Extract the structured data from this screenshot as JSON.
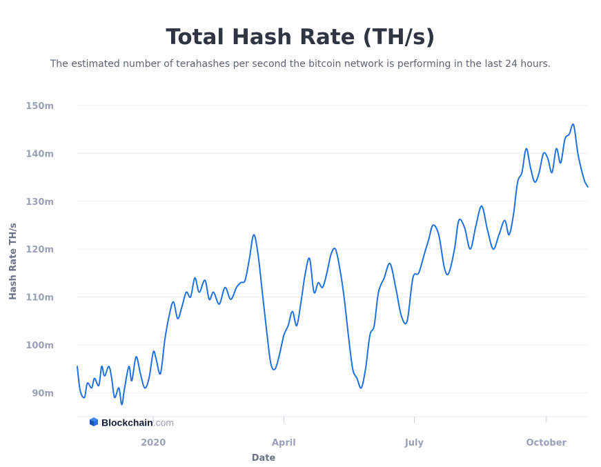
{
  "header": {
    "title": "Total Hash Rate (TH/s)",
    "subtitle": "The estimated number of terahashes per second the bitcoin network is performing in the last 24 hours."
  },
  "branding": {
    "name": "Blockchain",
    "suffix": ".com",
    "icon": "blockchain-cube-icon"
  },
  "colors": {
    "line": "#1e6fe0",
    "grid": "#eef0f5",
    "tick": "#9aa1b7",
    "brand_dark": "#121d33",
    "brand_light": "#9aa1b7"
  },
  "chart_data": {
    "type": "line",
    "title": "Total Hash Rate (TH/s)",
    "xlabel": "Date",
    "ylabel": "Hash Rate TH/s",
    "ylim": [
      85000000,
      150000000
    ],
    "y_ticks": [
      {
        "value": 90000000,
        "label": "90m"
      },
      {
        "value": 100000000,
        "label": "100m"
      },
      {
        "value": 110000000,
        "label": "110m"
      },
      {
        "value": 120000000,
        "label": "120m"
      },
      {
        "value": 130000000,
        "label": "130m"
      },
      {
        "value": 140000000,
        "label": "140m"
      },
      {
        "value": 150000000,
        "label": "150m"
      }
    ],
    "xlim": [
      "2019-11-09",
      "2020-10-30"
    ],
    "x_ticks": [
      {
        "value": "2020-01-01",
        "label": "2020"
      },
      {
        "value": "2020-04-01",
        "label": "April"
      },
      {
        "value": "2020-07-01",
        "label": "July"
      },
      {
        "value": "2020-10-01",
        "label": "October"
      }
    ],
    "grid": true,
    "series": [
      {
        "x": [
          "2019-11-09",
          "2019-11-11",
          "2019-11-14",
          "2019-11-16",
          "2019-11-19",
          "2019-11-21",
          "2019-11-24",
          "2019-11-26",
          "2019-11-28",
          "2019-12-01",
          "2019-12-03",
          "2019-12-05",
          "2019-12-08",
          "2019-12-10",
          "2019-12-12",
          "2019-12-15",
          "2019-12-17",
          "2019-12-20",
          "2019-12-23",
          "2019-12-26",
          "2019-12-29",
          "2020-01-01",
          "2020-01-03",
          "2020-01-06",
          "2020-01-09",
          "2020-01-12",
          "2020-01-15",
          "2020-01-18",
          "2020-01-21",
          "2020-01-24",
          "2020-01-27",
          "2020-01-30",
          "2020-02-02",
          "2020-02-06",
          "2020-02-09",
          "2020-02-12",
          "2020-02-16",
          "2020-02-20",
          "2020-02-24",
          "2020-02-28",
          "2020-03-02",
          "2020-03-05",
          "2020-03-08",
          "2020-03-11",
          "2020-03-14",
          "2020-03-17",
          "2020-03-20",
          "2020-03-23",
          "2020-03-26",
          "2020-03-29",
          "2020-04-01",
          "2020-04-04",
          "2020-04-07",
          "2020-04-10",
          "2020-04-13",
          "2020-04-16",
          "2020-04-19",
          "2020-04-22",
          "2020-04-25",
          "2020-04-28",
          "2020-05-01",
          "2020-05-04",
          "2020-05-07",
          "2020-05-10",
          "2020-05-13",
          "2020-05-16",
          "2020-05-19",
          "2020-05-22",
          "2020-05-25",
          "2020-05-28",
          "2020-05-31",
          "2020-06-03",
          "2020-06-06",
          "2020-06-10",
          "2020-06-14",
          "2020-06-18",
          "2020-06-22",
          "2020-06-26",
          "2020-06-30",
          "2020-07-04",
          "2020-07-08",
          "2020-07-11",
          "2020-07-14",
          "2020-07-18",
          "2020-07-22",
          "2020-07-25",
          "2020-07-29",
          "2020-08-01",
          "2020-08-05",
          "2020-08-09",
          "2020-08-13",
          "2020-08-17",
          "2020-08-21",
          "2020-08-25",
          "2020-08-29",
          "2020-09-02",
          "2020-09-05",
          "2020-09-08",
          "2020-09-11",
          "2020-09-14",
          "2020-09-17",
          "2020-09-20",
          "2020-09-23",
          "2020-09-26",
          "2020-09-29",
          "2020-10-02",
          "2020-10-05",
          "2020-10-08",
          "2020-10-11",
          "2020-10-14",
          "2020-10-17",
          "2020-10-20",
          "2020-10-23",
          "2020-10-26",
          "2020-10-28",
          "2020-10-30"
        ],
        "values": [
          95500000,
          90500000,
          89000000,
          92000000,
          91000000,
          93000000,
          91500000,
          95500000,
          93500000,
          95500000,
          93000000,
          89000000,
          91000000,
          87500000,
          91000000,
          95500000,
          92500000,
          97500000,
          94000000,
          91000000,
          93000000,
          98500000,
          97000000,
          94000000,
          101000000,
          106000000,
          109000000,
          105500000,
          108000000,
          111000000,
          110000000,
          114000000,
          111000000,
          113500000,
          109500000,
          111000000,
          108500000,
          112000000,
          109500000,
          112000000,
          113000000,
          113500000,
          118000000,
          123000000,
          119000000,
          111000000,
          103000000,
          96000000,
          95000000,
          98000000,
          102000000,
          104000000,
          107000000,
          104000000,
          109000000,
          115000000,
          118000000,
          111000000,
          113000000,
          112000000,
          115000000,
          119000000,
          120000000,
          116000000,
          110000000,
          102000000,
          95000000,
          93000000,
          91000000,
          95000000,
          102000000,
          104000000,
          111000000,
          114000000,
          117000000,
          112000000,
          106000000,
          105000000,
          114000000,
          115000000,
          119000000,
          122000000,
          125000000,
          123000000,
          116000000,
          115000000,
          120000000,
          126000000,
          124500000,
          120000000,
          125000000,
          129000000,
          124000000,
          120000000,
          123000000,
          126000000,
          123000000,
          127000000,
          134000000,
          136000000,
          141000000,
          137000000,
          134000000,
          136000000,
          140000000,
          139000000,
          136000000,
          141000000,
          138000000,
          143000000,
          144000000,
          146000000,
          140000000,
          136000000,
          134000000,
          133000000
        ]
      }
    ]
  }
}
